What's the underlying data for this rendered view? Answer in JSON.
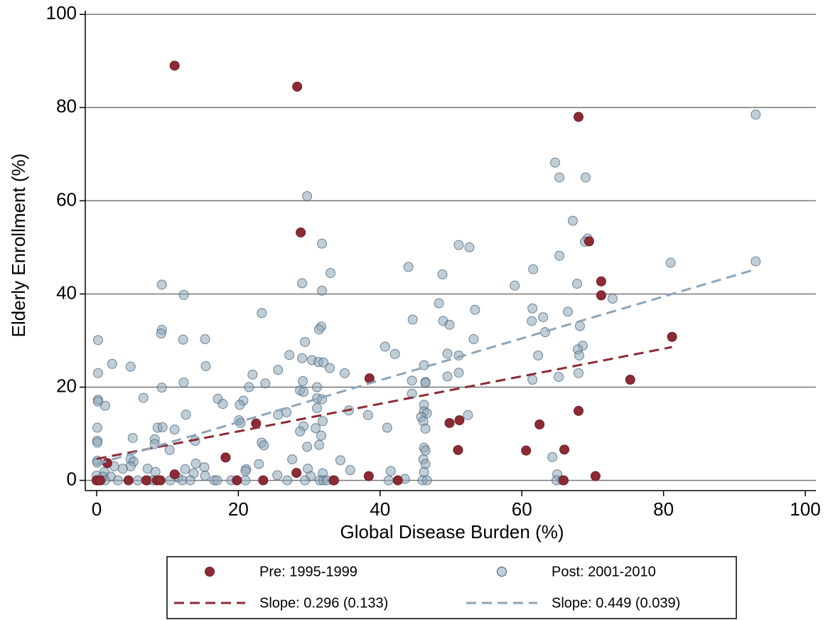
{
  "chart_data": {
    "type": "scatter",
    "xlabel": "Global Disease Burden (%)",
    "ylabel": "Elderly Enrollment (%)",
    "xlim": [
      -1.6,
      101.5
    ],
    "ylim": [
      -2.2,
      100.8
    ],
    "xticks": [
      0,
      20,
      40,
      60,
      80,
      100
    ],
    "yticks": [
      0,
      20,
      40,
      60,
      80,
      100
    ],
    "grid": true,
    "series": [
      {
        "name": "Pre: 1995-1999",
        "color": "#8c2b35",
        "x": [
          11,
          28.3,
          68,
          28.8,
          69.5,
          71.2,
          71.2,
          81.2,
          75.3,
          38.5,
          68,
          62.5,
          51.2,
          49.8,
          22.5,
          51,
          60.6,
          66,
          18.2,
          1.5,
          11,
          28.2,
          38.4,
          70.4,
          4.5,
          7,
          8.5,
          9,
          19.8,
          23.5,
          33.5,
          42.5,
          65.9,
          0,
          0.5
        ],
        "values": [
          89,
          84.5,
          78,
          53.2,
          51.3,
          42.7,
          39.7,
          30.8,
          21.6,
          21.9,
          14.9,
          12,
          12.9,
          12.3,
          12.2,
          6.5,
          6.4,
          6.6,
          4.9,
          3.7,
          1.3,
          1.6,
          0.9,
          0.9,
          0,
          0,
          0,
          0,
          0,
          0,
          0,
          0,
          0,
          0,
          0
        ]
      },
      {
        "name": "Post: 2001-2010",
        "color": "#8da5b8",
        "x": [
          93,
          64.7,
          69,
          65.3,
          29.7,
          67.2,
          69.3,
          68.9,
          31.8,
          51.1,
          52.6,
          65.3,
          81,
          93,
          44,
          61.6,
          33,
          48.8,
          29,
          9.2,
          59,
          67.8,
          31.8,
          12.3,
          72.8,
          48.3,
          61.5,
          53.4,
          66.5,
          23.3,
          63,
          44.6,
          61.4,
          48.9,
          49.8,
          68.2,
          31.7,
          31.4,
          9.2,
          9.1,
          63.3,
          53.2,
          15.3,
          12.2,
          0.2,
          29.4,
          68.6,
          40.7,
          67.9,
          49.5,
          42.1,
          27.2,
          51.1,
          62.3,
          68.1,
          29,
          30.4,
          31.3,
          2.2,
          32,
          46.2,
          15.4,
          4.8,
          32.9,
          25.6,
          35,
          68,
          51.1,
          0.2,
          22,
          49.5,
          65.2,
          61.5,
          46.4,
          46.4,
          44.5,
          29.1,
          12.3,
          23.8,
          21.5,
          9.2,
          31.1,
          28.7,
          29.2,
          44.5,
          6.6,
          17.1,
          0.2,
          0.2,
          20.7,
          31.1,
          31.8,
          17.8,
          20.2,
          1.2,
          46.2,
          31.1,
          35.6,
          26.8,
          46.2,
          46.6,
          25.6,
          38.3,
          12.6,
          45.8,
          52.4,
          20.1,
          31.9,
          20.3,
          46.1,
          30.9,
          29.2,
          28.7,
          41,
          8.6,
          9.3,
          0.1,
          46.4,
          11,
          5.1,
          31.7,
          8.2,
          0.1,
          0.1,
          23.3,
          23.6,
          13.9,
          29.7,
          31.4,
          8.2,
          46.2,
          46.4,
          10.3,
          64.3,
          18.2,
          27.6,
          34.4,
          4.8,
          5.2,
          46.1,
          46.4,
          22.9,
          14,
          0.1,
          0.1,
          15.2,
          12.5,
          4.8,
          2.5,
          3.7,
          7.2,
          21.1,
          29.8,
          35.8,
          41.5,
          1.1,
          8.3,
          13.7,
          15.3,
          21,
          25.5,
          31.9,
          46.2,
          65,
          30.2,
          0,
          0.9,
          2,
          11.5,
          0,
          0.3,
          0.6,
          1.2,
          3,
          5.8,
          7.2,
          8,
          10.4,
          12.1,
          13.2,
          16.6,
          17,
          19,
          21,
          26.9,
          29.4,
          31.5,
          32,
          32.5,
          33.4,
          41.2,
          43.5,
          46,
          46.6,
          64.9,
          65.7
        ],
        "values": [
          78.5,
          68.2,
          65,
          65,
          61,
          55.7,
          51.9,
          51.2,
          50.8,
          50.5,
          50,
          48.2,
          46.7,
          47,
          45.8,
          45.3,
          44.5,
          44.2,
          42.3,
          42,
          41.8,
          42.2,
          40.7,
          39.8,
          39,
          38,
          36.9,
          36.6,
          36.2,
          35.9,
          35,
          34.5,
          34.2,
          34.2,
          33.4,
          33.1,
          33,
          32.4,
          32.3,
          31.5,
          31.8,
          30.3,
          30.3,
          30.2,
          30.1,
          29.7,
          28.9,
          28.7,
          28.1,
          27.2,
          27.1,
          26.9,
          26.8,
          26.8,
          26.8,
          26.2,
          25.8,
          25.4,
          25,
          25.3,
          24.7,
          24.5,
          24.4,
          24.1,
          23.7,
          23,
          23,
          23.1,
          23,
          22.7,
          22.3,
          22.2,
          21.6,
          21.1,
          20.9,
          21.4,
          21.3,
          21,
          20.8,
          20,
          19.9,
          20,
          19.3,
          19,
          18.6,
          17.7,
          17.5,
          17.3,
          16.9,
          17.1,
          17.6,
          17.4,
          16.4,
          16.2,
          16,
          16.2,
          15.5,
          15,
          14.6,
          14.8,
          14.4,
          14.1,
          14,
          14.1,
          13.6,
          14,
          12.9,
          12.7,
          12.3,
          12.7,
          11.2,
          11.6,
          10.5,
          11.3,
          11.3,
          11.4,
          11.3,
          11.1,
          10.9,
          9.1,
          9.6,
          8.8,
          8.5,
          8.1,
          8.1,
          7.5,
          8.5,
          7.2,
          7.6,
          7.8,
          7,
          6.4,
          6.5,
          5,
          4.9,
          4.5,
          4.3,
          4.5,
          4,
          4.5,
          3.5,
          3.5,
          3.6,
          4.2,
          3.8,
          2.8,
          2.4,
          3,
          3,
          2.5,
          2.5,
          2.4,
          2.5,
          2.2,
          2,
          1.8,
          1.8,
          1.5,
          1,
          2,
          1.1,
          1.5,
          1.8,
          1.3,
          0.9,
          1,
          0.8,
          0.8,
          0.6,
          0,
          0,
          0,
          0,
          0,
          0,
          0,
          0,
          0,
          0,
          0,
          0,
          0,
          0,
          0,
          0,
          0,
          0,
          0,
          0,
          0,
          0,
          0.3,
          0,
          0,
          0,
          0
        ]
      }
    ],
    "fits": [
      {
        "name": "Slope: 0.296 (0.133)",
        "color": "#8c2b35",
        "x": [
          0,
          81.2
        ],
        "values": [
          4.6,
          28.6
        ]
      },
      {
        "name": "Slope: 0.449 (0.039)",
        "color": "#8da5b8",
        "x": [
          0,
          93
        ],
        "values": [
          3.5,
          45.3
        ]
      }
    ]
  }
}
